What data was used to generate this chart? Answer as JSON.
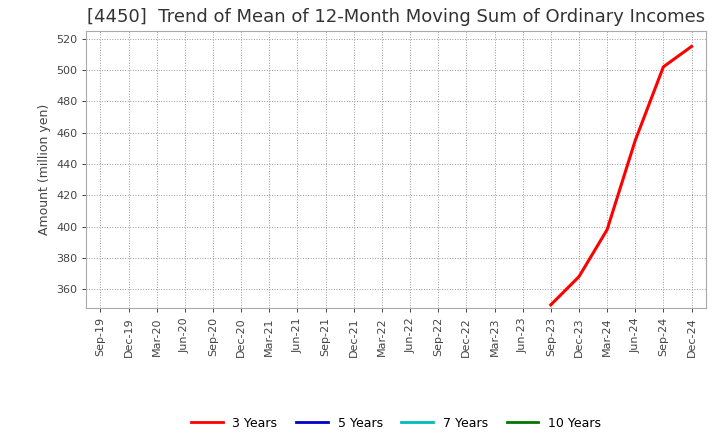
{
  "title": "[4450]  Trend of Mean of 12-Month Moving Sum of Ordinary Incomes",
  "ylabel": "Amount (million yen)",
  "background_color": "#ffffff",
  "grid_color": "#999999",
  "ylim": [
    348,
    525
  ],
  "yticks": [
    360,
    380,
    400,
    420,
    440,
    460,
    480,
    500,
    520
  ],
  "x_labels": [
    "Sep-19",
    "Dec-19",
    "Mar-20",
    "Jun-20",
    "Sep-20",
    "Dec-20",
    "Mar-21",
    "Jun-21",
    "Sep-21",
    "Dec-21",
    "Mar-22",
    "Jun-22",
    "Sep-22",
    "Dec-22",
    "Mar-23",
    "Jun-23",
    "Sep-23",
    "Dec-23",
    "Mar-24",
    "Jun-24",
    "Sep-24",
    "Dec-24"
  ],
  "series": [
    {
      "label": "3 Years",
      "color": "#ff0000",
      "linewidth": 2.2,
      "data_x_indices": [
        16,
        17,
        18,
        19,
        20,
        21
      ],
      "data_y": [
        350,
        368,
        398,
        455,
        502,
        515
      ]
    },
    {
      "label": "5 Years",
      "color": "#0000cc",
      "linewidth": 2.0,
      "data_x_indices": [],
      "data_y": []
    },
    {
      "label": "7 Years",
      "color": "#00bbbb",
      "linewidth": 2.0,
      "data_x_indices": [],
      "data_y": []
    },
    {
      "label": "10 Years",
      "color": "#007700",
      "linewidth": 2.0,
      "data_x_indices": [],
      "data_y": []
    }
  ],
  "legend_labels": [
    "3 Years",
    "5 Years",
    "7 Years",
    "10 Years"
  ],
  "legend_colors": [
    "#ff0000",
    "#0000cc",
    "#00bbbb",
    "#007700"
  ],
  "title_fontsize": 13,
  "tick_fontsize": 8,
  "ylabel_fontsize": 9,
  "title_color": "#333333",
  "tick_color": "#444444",
  "spine_color": "#aaaaaa"
}
